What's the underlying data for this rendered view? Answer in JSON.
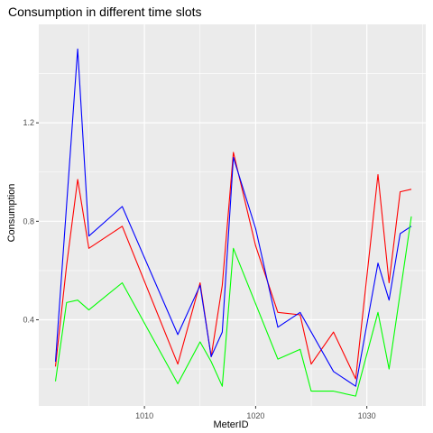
{
  "chart_data": {
    "type": "line",
    "title": "Consumption in different time slots",
    "xlabel": "MeterID",
    "ylabel": "Consumption",
    "xlim": [
      1000.5,
      1035.3
    ],
    "ylim": [
      0.05,
      1.6
    ],
    "x_ticks": [
      1010,
      1020,
      1030
    ],
    "x_tick_labels": [
      "1010",
      "1020",
      "1030"
    ],
    "x_minor_ticks": [
      1005,
      1015,
      1025,
      1035
    ],
    "y_ticks": [
      0.4,
      0.8,
      1.2
    ],
    "y_tick_labels": [
      "0.4",
      "0.8",
      "1.2"
    ],
    "y_minor_ticks": [
      0.2,
      0.6,
      1.0,
      1.4
    ],
    "grid": true,
    "legend": "none",
    "background": "#ebebeb",
    "series": [
      {
        "color": "#ff0000",
        "x": [
          1002,
          1003,
          1004,
          1005,
          1008,
          1013,
          1015,
          1016,
          1017,
          1018,
          1020,
          1022,
          1024,
          1025,
          1027,
          1029,
          1031,
          1032,
          1033,
          1034
        ],
        "y": [
          0.21,
          0.62,
          0.97,
          0.69,
          0.78,
          0.22,
          0.55,
          0.25,
          0.54,
          1.08,
          0.7,
          0.43,
          0.42,
          0.22,
          0.35,
          0.16,
          0.99,
          0.55,
          0.92,
          0.93
        ]
      },
      {
        "color": "#0000ff",
        "x": [
          1002,
          1004,
          1005,
          1008,
          1013,
          1015,
          1016,
          1017,
          1018,
          1020,
          1022,
          1024,
          1027,
          1029,
          1031,
          1032,
          1033,
          1034
        ],
        "y": [
          0.23,
          1.5,
          0.74,
          0.86,
          0.34,
          0.54,
          0.25,
          0.35,
          1.06,
          0.77,
          0.37,
          0.43,
          0.19,
          0.13,
          0.63,
          0.48,
          0.75,
          0.78
        ]
      },
      {
        "color": "#00ff00",
        "x": [
          1002,
          1003,
          1004,
          1005,
          1008,
          1013,
          1015,
          1016,
          1017,
          1018,
          1022,
          1024,
          1025,
          1027,
          1029,
          1031,
          1032,
          1034
        ],
        "y": [
          0.15,
          0.47,
          0.48,
          0.44,
          0.55,
          0.14,
          0.31,
          0.23,
          0.13,
          0.69,
          0.24,
          0.28,
          0.11,
          0.11,
          0.09,
          0.43,
          0.2,
          0.82
        ]
      }
    ]
  }
}
